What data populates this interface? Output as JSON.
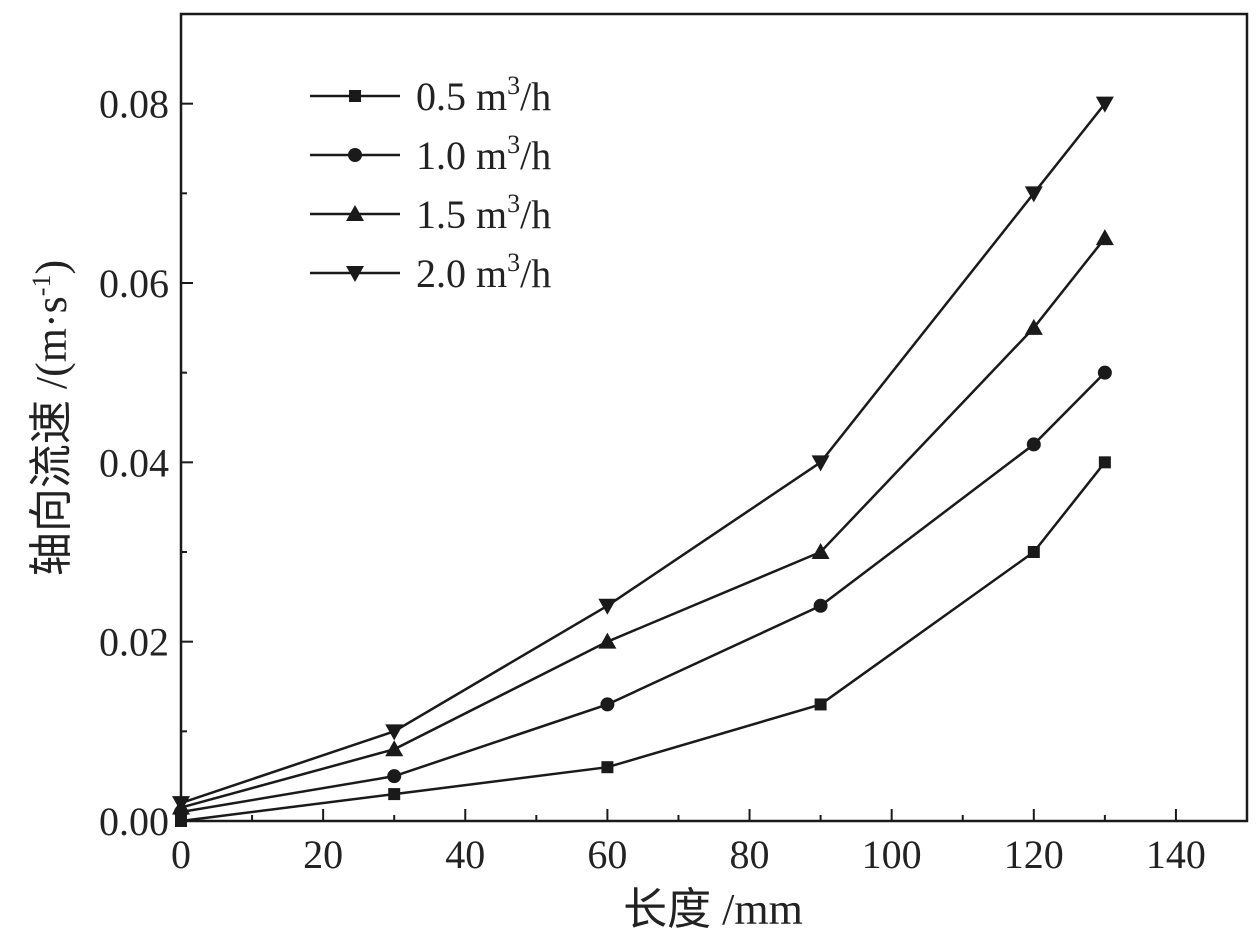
{
  "chart_data": {
    "type": "line",
    "xlabel": "长度 /mm",
    "ylabel_main": "轴向流速 /(m·s",
    "ylabel_sup": "-1",
    "ylabel_end": ")",
    "xlim": [
      0,
      150
    ],
    "ylim": [
      0,
      0.09
    ],
    "x_ticks": [
      0,
      20,
      40,
      60,
      80,
      100,
      120,
      140
    ],
    "x_tick_labels": [
      "0",
      "20",
      "40",
      "60",
      "80",
      "100",
      "120",
      "140"
    ],
    "y_ticks": [
      0,
      0.02,
      0.04,
      0.06,
      0.08
    ],
    "y_tick_labels": [
      "0.00",
      "0.02",
      "0.04",
      "0.06",
      "0.08"
    ],
    "grid": false,
    "legend_position": "top-left",
    "line_color": "#1a1a1a",
    "x": [
      0,
      30,
      60,
      90,
      120,
      130
    ],
    "series": [
      {
        "name_main": "0.5 m",
        "name_sup": "3",
        "name_end": "/h",
        "marker": "square",
        "values": [
          0.0,
          0.003,
          0.006,
          0.013,
          0.03,
          0.04
        ]
      },
      {
        "name_main": "1.0 m",
        "name_sup": "3",
        "name_end": "/h",
        "marker": "circle",
        "values": [
          0.001,
          0.005,
          0.013,
          0.024,
          0.042,
          0.05
        ]
      },
      {
        "name_main": "1.5 m",
        "name_sup": "3",
        "name_end": "/h",
        "marker": "triangle-up",
        "values": [
          0.0015,
          0.008,
          0.02,
          0.03,
          0.055,
          0.065
        ]
      },
      {
        "name_main": "2.0 m",
        "name_sup": "3",
        "name_end": "/h",
        "marker": "triangle-down",
        "values": [
          0.002,
          0.01,
          0.024,
          0.04,
          0.07,
          0.08
        ]
      }
    ]
  }
}
